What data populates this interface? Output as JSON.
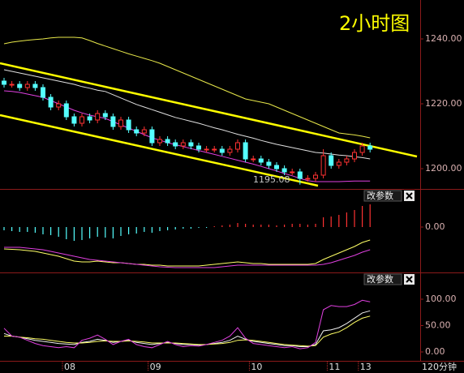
{
  "chart_data": [
    {
      "type": "candlestick",
      "title": "2小时图",
      "annotation": "1195.08",
      "up_color": "#ff3232",
      "down_color": "#54ffff",
      "open": [
        1227,
        1226,
        1226,
        1225,
        1226,
        1225,
        1222,
        1219,
        1220,
        1216,
        1214,
        1216,
        1215,
        1217,
        1216,
        1213,
        1215,
        1212,
        1211,
        1212,
        1208,
        1209,
        1208,
        1207,
        1208,
        1207,
        1206,
        1206,
        1206,
        1205,
        1206,
        1208,
        1203,
        1203,
        1202,
        1201,
        1200,
        1199,
        1199,
        1197,
        1197,
        1198,
        1204,
        1201,
        1202,
        1203,
        1205,
        1207
      ],
      "high": [
        1228,
        1227,
        1227,
        1227,
        1227,
        1226,
        1223,
        1221,
        1221,
        1217,
        1217,
        1217,
        1218,
        1218,
        1217,
        1216,
        1216,
        1213,
        1213,
        1213,
        1210,
        1210,
        1209,
        1209,
        1209,
        1208,
        1207,
        1207,
        1207,
        1207,
        1209,
        1209,
        1204,
        1204,
        1203,
        1202,
        1201,
        1200,
        1200,
        1198,
        1199,
        1206,
        1205,
        1203,
        1204,
        1206,
        1208,
        1208
      ],
      "low": [
        1225,
        1225,
        1224,
        1224,
        1224,
        1221,
        1218,
        1218,
        1215,
        1213,
        1213,
        1214,
        1214,
        1215,
        1212,
        1212,
        1211,
        1210,
        1210,
        1207,
        1207,
        1207,
        1206,
        1206,
        1206,
        1205,
        1205,
        1205,
        1204,
        1204,
        1205,
        1202,
        1202,
        1201,
        1200,
        1199,
        1198,
        1198,
        1195.08,
        1196,
        1196,
        1197,
        1200,
        1200,
        1201,
        1202,
        1204,
        1205
      ],
      "close": [
        1226,
        1226,
        1225,
        1226,
        1225,
        1222,
        1219,
        1220,
        1216,
        1214,
        1216,
        1215,
        1217,
        1216,
        1213,
        1215,
        1212,
        1211,
        1212,
        1208,
        1209,
        1208,
        1207,
        1208,
        1207,
        1206,
        1206,
        1206,
        1205,
        1206,
        1208,
        1203,
        1203,
        1202,
        1201,
        1200,
        1199,
        1199,
        1197,
        1197,
        1198,
        1204,
        1201,
        1202,
        1203,
        1205,
        1207,
        1206
      ],
      "series": [
        {
          "color": "#e8e84a",
          "values": [
            1238.5,
            1239,
            1239.3,
            1239.6,
            1239.8,
            1240,
            1240.3,
            1240.5,
            1240.5,
            1240.5,
            1240.3,
            1239.5,
            1238.6,
            1237.8,
            1237,
            1236.2,
            1235.4,
            1234.7,
            1234,
            1233.3,
            1232.5,
            1231.5,
            1230.5,
            1229.5,
            1228.5,
            1227.5,
            1226.5,
            1225.5,
            1224.5,
            1223.5,
            1222.5,
            1221.5,
            1221,
            1220.5,
            1220,
            1219,
            1218,
            1217,
            1216,
            1215,
            1214,
            1213,
            1212,
            1211,
            1210.7,
            1210.4,
            1210,
            1209.5
          ]
        },
        {
          "color": "#e0e0e0",
          "values": [
            1230.5,
            1230,
            1229.5,
            1229,
            1228.5,
            1228,
            1227.5,
            1227,
            1226.5,
            1226,
            1225.3,
            1224.8,
            1224.2,
            1223.8,
            1222.8,
            1221.8,
            1220.8,
            1219.8,
            1219,
            1218.2,
            1217.4,
            1216.6,
            1215.8,
            1215.2,
            1214.6,
            1214,
            1213.3,
            1212.6,
            1212,
            1211.3,
            1210.6,
            1210,
            1209.4,
            1208.7,
            1208.1,
            1207.5,
            1207,
            1206.5,
            1206,
            1205.5,
            1205,
            1204.8,
            1204.5,
            1204.2,
            1204,
            1203.7,
            1203.4,
            1203
          ]
        },
        {
          "color": "#e040e0",
          "values": [
            1224,
            1223.8,
            1223.5,
            1223,
            1222.5,
            1222,
            1221,
            1220,
            1219,
            1218,
            1217.2,
            1216.5,
            1216,
            1215.5,
            1214.5,
            1213.5,
            1212.5,
            1211.5,
            1210.5,
            1209.5,
            1208.8,
            1208,
            1207.4,
            1206.8,
            1206.2,
            1205.6,
            1205,
            1204.4,
            1203.8,
            1203.2,
            1202.6,
            1202,
            1201.4,
            1200.7,
            1200,
            1199.3,
            1198.5,
            1197.8,
            1197,
            1196.3,
            1196,
            1196,
            1196,
            1196,
            1196.1,
            1196.2,
            1196.2,
            1196.2
          ]
        }
      ],
      "ylim": [
        1194,
        1252
      ],
      "yticks": [
        {
          "value": 1240,
          "label": "1240.00"
        },
        {
          "value": 1220,
          "label": "1220.00"
        },
        {
          "value": 1200,
          "label": "1200.00"
        }
      ]
    },
    {
      "type": "combo",
      "button": "改参数",
      "histogram": [
        -0.8,
        -1,
        -1.2,
        -1.2,
        -1.4,
        -1.8,
        -2,
        -2.4,
        -3,
        -3.4,
        -3.2,
        -2.8,
        -2.4,
        -2.6,
        -2.8,
        -2.2,
        -1.8,
        -1.6,
        -1.2,
        -1.4,
        -1,
        -0.8,
        -0.6,
        -0.4,
        -0.4,
        -0.2,
        -0.2,
        0.2,
        0.4,
        0.6,
        1,
        0.8,
        0.6,
        0.6,
        0.6,
        0.4,
        0.6,
        0.8,
        0.8,
        0.6,
        0.8,
        2.4,
        2.6,
        3,
        3.6,
        4.2,
        5.2,
        5.6
      ],
      "up_color": "#ff3232",
      "down_color": "#54ffff",
      "series": [
        {
          "color": "#ffff66",
          "values": [
            -5.4,
            -5.5,
            -5.6,
            -5.8,
            -6,
            -6.4,
            -6.8,
            -7.2,
            -7.8,
            -8.4,
            -8.6,
            -8.6,
            -8.4,
            -8.6,
            -8.8,
            -8.8,
            -9,
            -9.2,
            -9.2,
            -9.4,
            -9.4,
            -9.6,
            -9.6,
            -9.6,
            -9.6,
            -9.6,
            -9.4,
            -9.2,
            -9,
            -8.8,
            -8.6,
            -8.8,
            -9,
            -9,
            -9.2,
            -9.2,
            -9.2,
            -9.2,
            -9.2,
            -9.2,
            -9,
            -8,
            -7.2,
            -6.4,
            -5.6,
            -4.8,
            -3.8,
            -3.2
          ]
        },
        {
          "color": "#e040e0",
          "values": [
            -5,
            -5,
            -5,
            -5.2,
            -5.4,
            -5.6,
            -6,
            -6.4,
            -6.8,
            -7.2,
            -7.6,
            -8,
            -8.2,
            -8.4,
            -8.6,
            -8.8,
            -9,
            -9.2,
            -9.4,
            -9.6,
            -9.8,
            -9.9,
            -10,
            -10,
            -10,
            -10,
            -10,
            -10,
            -9.8,
            -9.6,
            -9.4,
            -9.4,
            -9.4,
            -9.4,
            -9.4,
            -9.4,
            -9.4,
            -9.4,
            -9.4,
            -9.4,
            -9.4,
            -9.2,
            -8.8,
            -8.2,
            -7.6,
            -7,
            -6.2,
            -5.6
          ]
        }
      ],
      "ylim": [
        -11,
        9
      ],
      "yticks": [
        {
          "value": 0,
          "label": "0.00"
        }
      ]
    },
    {
      "type": "line",
      "button": "改参数",
      "xlabel": "120分钟",
      "categories": [
        null,
        null,
        null,
        null,
        null,
        null,
        null,
        null,
        "08",
        null,
        null,
        null,
        null,
        null,
        null,
        null,
        null,
        null,
        null,
        "09",
        null,
        null,
        null,
        null,
        null,
        null,
        null,
        null,
        null,
        null,
        null,
        null,
        "10",
        null,
        null,
        null,
        null,
        null,
        null,
        null,
        null,
        null,
        "11",
        null,
        null,
        null,
        "13",
        null
      ],
      "series": [
        {
          "color": "#f0f0f0",
          "values": [
            35,
            30,
            28,
            25,
            22,
            20,
            18,
            16,
            15,
            14,
            18,
            20,
            24,
            22,
            18,
            20,
            22,
            18,
            16,
            14,
            16,
            18,
            16,
            14,
            14,
            13,
            14,
            16,
            18,
            22,
            30,
            24,
            20,
            18,
            16,
            14,
            12,
            12,
            10,
            10,
            14,
            40,
            42,
            46,
            54,
            64,
            74,
            78
          ]
        },
        {
          "color": "#ffff66",
          "values": [
            30,
            30,
            28,
            27,
            25,
            24,
            22,
            20,
            18,
            17,
            17,
            18,
            20,
            21,
            20,
            20,
            21,
            20,
            19,
            17,
            17,
            17,
            17,
            16,
            15,
            14,
            14,
            15,
            16,
            18,
            22,
            23,
            22,
            20,
            18,
            16,
            14,
            13,
            12,
            11,
            12,
            28,
            34,
            38,
            46,
            56,
            64,
            68
          ]
        },
        {
          "color": "#e040e0",
          "values": [
            45,
            30,
            28,
            22,
            16,
            12,
            10,
            8,
            10,
            8,
            22,
            26,
            32,
            24,
            14,
            20,
            24,
            14,
            10,
            8,
            14,
            20,
            14,
            10,
            12,
            11,
            14,
            18,
            22,
            30,
            46,
            26,
            16,
            14,
            12,
            10,
            8,
            10,
            6,
            8,
            18,
            80,
            88,
            86,
            86,
            90,
            98,
            95
          ]
        }
      ],
      "ylim": [
        -16.9,
        147.7
      ],
      "yticks": [
        {
          "value": 100,
          "label": "100.00"
        },
        {
          "value": 50,
          "label": "50.00"
        },
        {
          "value": 0,
          "label": "0.00"
        }
      ]
    }
  ]
}
